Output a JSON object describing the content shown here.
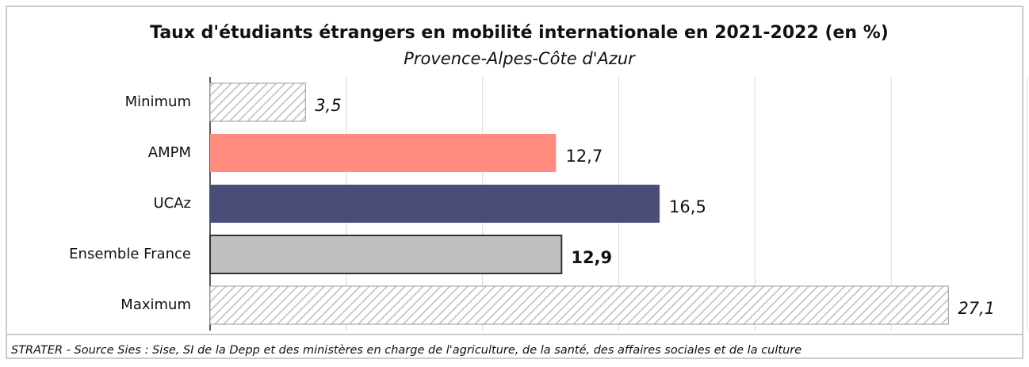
{
  "chart_data": {
    "type": "barh",
    "title": "Taux d'étudiants étrangers en mobilité internationale en 2021-2022 (en %)",
    "subtitle": "Provence-Alpes-Côte d'Azur",
    "categories": [
      "Minimum",
      "AMPM",
      "UCAz",
      "Ensemble France",
      "Maximum"
    ],
    "values": [
      3.5,
      12.7,
      16.5,
      12.9,
      27.1
    ],
    "value_labels": [
      "3,5",
      "12,7",
      "16,5",
      "12,9",
      "27,1"
    ],
    "colors": [
      "#ffffff",
      "#ff8c7e",
      "#4a4d78",
      "#bfbfbf",
      "#ffffff"
    ],
    "hatched": [
      true,
      false,
      false,
      false,
      true
    ],
    "xlim": [
      0,
      30
    ],
    "xticks": [
      0,
      5,
      10,
      15,
      20,
      25,
      30
    ],
    "grid": true,
    "source": "STRATER - Source Sies : Sise, SI de la Depp et des ministères en charge de l'agriculture, de la santé, des affaires sociales et de la culture"
  }
}
